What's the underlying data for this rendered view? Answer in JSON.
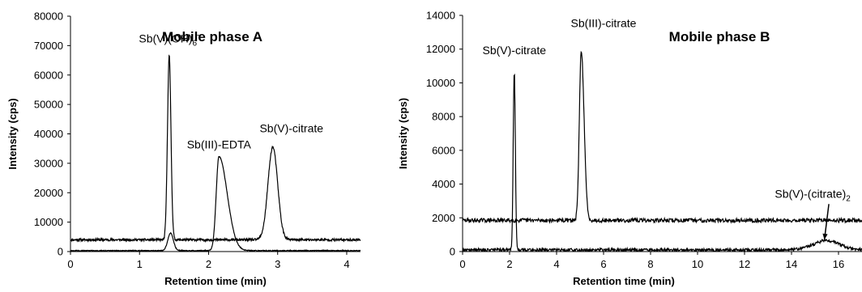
{
  "chart_data": [
    {
      "type": "line",
      "title": "Mobile phase A",
      "xlabel": "Retention time (min)",
      "ylabel": "Intensity (cps)",
      "xlim": [
        0,
        4.2
      ],
      "ylim": [
        0,
        80000
      ],
      "xticks": [
        "0",
        "1",
        "2",
        "3",
        "4"
      ],
      "yticks": [
        "0",
        "10000",
        "20000",
        "30000",
        "40000",
        "50000",
        "60000",
        "70000",
        "80000"
      ],
      "grid": false,
      "series": [
        {
          "baseline": 4000,
          "noise": 400,
          "peaks": [
            {
              "x": 1.43,
              "height": 62500,
              "width": 0.025
            },
            {
              "x": 2.93,
              "height": 31500,
              "width": 0.07
            }
          ]
        },
        {
          "baseline": 300,
          "noise": 150,
          "peaks": [
            {
              "x": 1.45,
              "height": 6000,
              "width": 0.04
            },
            {
              "x": 2.15,
              "height": 32000,
              "width": 0.04,
              "tail": 0.12
            }
          ]
        }
      ],
      "annotations": [
        {
          "main": "Sb(V)(OH)",
          "sub": "6",
          "sup": "-",
          "x": 1.43,
          "y": 71000
        },
        {
          "main": "Sb(III)-EDTA",
          "x": 2.15,
          "y": 35000
        },
        {
          "main": "Sb(V)-citrate",
          "x": 3.2,
          "y": 40500
        }
      ]
    },
    {
      "type": "line",
      "title": "Mobile phase B",
      "xlabel": "Retention time (min)",
      "ylabel": "Intensity (cps)",
      "xlim": [
        0,
        17
      ],
      "ylim": [
        0,
        14000
      ],
      "xticks": [
        "0",
        "2",
        "4",
        "6",
        "8",
        "10",
        "12",
        "14",
        "16"
      ],
      "yticks": [
        "0",
        "2000",
        "4000",
        "6000",
        "8000",
        "10000",
        "12000",
        "14000"
      ],
      "grid": false,
      "series": [
        {
          "baseline": 1850,
          "noise": 120,
          "peaks": [
            {
              "x": 5.05,
              "height": 10100,
              "width": 0.08,
              "tail": 0.12
            }
          ]
        },
        {
          "baseline": 100,
          "noise": 90,
          "peaks": [
            {
              "x": 2.2,
              "height": 10600,
              "width": 0.045
            },
            {
              "x": 15.5,
              "height": 550,
              "width": 0.55
            }
          ]
        }
      ],
      "annotations": [
        {
          "main": "Sb(V)-citrate",
          "x": 2.2,
          "y": 11700
        },
        {
          "main": "Sb(III)-citrate",
          "x": 6.0,
          "y": 13300
        },
        {
          "main": "Sb(V)-(citrate)",
          "sub": "2",
          "x": 14.9,
          "y": 3200,
          "arrow_to": [
            15.4,
            700
          ]
        }
      ]
    }
  ]
}
